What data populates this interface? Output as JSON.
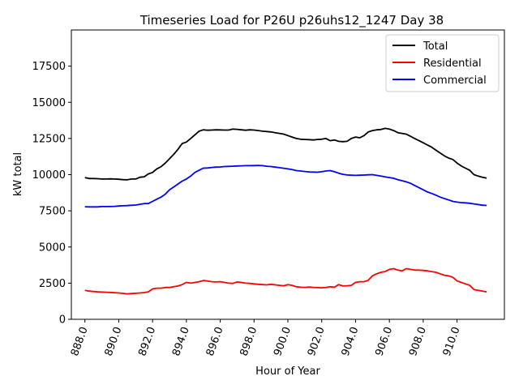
{
  "chart_data": {
    "type": "line",
    "title": "Timeseries Load for P26U p26uhs12_1247  Day 38",
    "xlabel": "Hour of Year",
    "ylabel": "kW total",
    "xlim": [
      887.2,
      912.8
    ],
    "ylim": [
      0,
      20000
    ],
    "xticks": [
      888,
      890,
      892,
      894,
      896,
      898,
      900,
      902,
      904,
      906,
      908,
      910
    ],
    "xtick_labels": [
      "888.0",
      "890.0",
      "892.0",
      "894.0",
      "896.0",
      "898.0",
      "900.0",
      "902.0",
      "904.0",
      "906.0",
      "908.0",
      "910.0"
    ],
    "yticks": [
      0,
      2500,
      5000,
      7500,
      10000,
      12500,
      15000,
      17500
    ],
    "ytick_labels": [
      "0",
      "2500",
      "5000",
      "7500",
      "10000",
      "12500",
      "15000",
      "17500"
    ],
    "legend_position": "top-right",
    "x": [
      888.0,
      888.25,
      888.5,
      888.75,
      889.0,
      889.25,
      889.5,
      889.75,
      890.0,
      890.25,
      890.5,
      890.75,
      891.0,
      891.25,
      891.5,
      891.75,
      892.0,
      892.25,
      892.5,
      892.75,
      893.0,
      893.25,
      893.5,
      893.75,
      894.0,
      894.25,
      894.5,
      894.75,
      895.0,
      895.25,
      895.5,
      895.75,
      896.0,
      896.25,
      896.5,
      896.75,
      897.0,
      897.25,
      897.5,
      897.75,
      898.0,
      898.25,
      898.5,
      898.75,
      899.0,
      899.25,
      899.5,
      899.75,
      900.0,
      900.25,
      900.5,
      900.75,
      901.0,
      901.25,
      901.5,
      901.75,
      902.0,
      902.25,
      902.5,
      902.75,
      903.0,
      903.25,
      903.5,
      903.75,
      904.0,
      904.25,
      904.5,
      904.75,
      905.0,
      905.25,
      905.5,
      905.75,
      906.0,
      906.25,
      906.5,
      906.75,
      907.0,
      907.25,
      907.5,
      907.75,
      908.0,
      908.25,
      908.5,
      908.75,
      909.0,
      909.25,
      909.5,
      909.75,
      910.0,
      910.25,
      910.5,
      910.75,
      911.0,
      911.25,
      911.5,
      911.75
    ],
    "series": [
      {
        "name": "Total",
        "color": "#000000",
        "values": [
          9800,
          9730,
          9730,
          9720,
          9700,
          9700,
          9710,
          9700,
          9680,
          9650,
          9640,
          9700,
          9700,
          9820,
          9850,
          10050,
          10150,
          10400,
          10550,
          10800,
          11100,
          11400,
          11750,
          12150,
          12250,
          12500,
          12750,
          13000,
          13100,
          13070,
          13080,
          13100,
          13090,
          13080,
          13080,
          13150,
          13130,
          13100,
          13070,
          13100,
          13080,
          13050,
          13000,
          12980,
          12950,
          12900,
          12850,
          12800,
          12700,
          12600,
          12500,
          12450,
          12430,
          12420,
          12400,
          12430,
          12450,
          12500,
          12350,
          12400,
          12300,
          12280,
          12300,
          12500,
          12600,
          12550,
          12700,
          12950,
          13050,
          13100,
          13120,
          13200,
          13150,
          13050,
          12900,
          12850,
          12800,
          12650,
          12500,
          12350,
          12200,
          12050,
          11900,
          11700,
          11500,
          11300,
          11150,
          11050,
          10800,
          10600,
          10450,
          10300,
          10000,
          9900,
          9820,
          9760
        ]
      },
      {
        "name": "Residential",
        "color": "#ff0000",
        "values": [
          2000,
          1950,
          1920,
          1900,
          1880,
          1870,
          1860,
          1840,
          1820,
          1790,
          1760,
          1780,
          1800,
          1820,
          1850,
          1900,
          2100,
          2150,
          2150,
          2200,
          2200,
          2250,
          2300,
          2400,
          2550,
          2500,
          2550,
          2600,
          2680,
          2650,
          2600,
          2580,
          2600,
          2550,
          2500,
          2480,
          2580,
          2550,
          2500,
          2480,
          2450,
          2420,
          2400,
          2380,
          2420,
          2380,
          2350,
          2320,
          2400,
          2350,
          2250,
          2220,
          2210,
          2230,
          2200,
          2190,
          2180,
          2200,
          2250,
          2220,
          2400,
          2300,
          2320,
          2350,
          2550,
          2600,
          2600,
          2700,
          3000,
          3150,
          3250,
          3300,
          3450,
          3500,
          3400,
          3350,
          3500,
          3450,
          3400,
          3400,
          3380,
          3350,
          3300,
          3250,
          3150,
          3050,
          3000,
          2900,
          2650,
          2550,
          2450,
          2350,
          2050,
          2000,
          1950,
          1900
        ]
      },
      {
        "name": "Commercial",
        "color": "#0000ff",
        "values": [
          7780,
          7770,
          7770,
          7770,
          7790,
          7790,
          7800,
          7810,
          7830,
          7850,
          7860,
          7880,
          7900,
          7950,
          8000,
          8000,
          8150,
          8300,
          8450,
          8650,
          8950,
          9150,
          9350,
          9550,
          9700,
          9900,
          10150,
          10300,
          10450,
          10460,
          10500,
          10520,
          10530,
          10560,
          10570,
          10580,
          10600,
          10610,
          10620,
          10620,
          10630,
          10640,
          10620,
          10580,
          10560,
          10520,
          10480,
          10440,
          10400,
          10350,
          10280,
          10250,
          10220,
          10190,
          10180,
          10170,
          10200,
          10250,
          10280,
          10200,
          10100,
          10020,
          9980,
          9960,
          9950,
          9960,
          9970,
          9990,
          10000,
          9950,
          9900,
          9850,
          9800,
          9750,
          9650,
          9580,
          9500,
          9400,
          9250,
          9100,
          8950,
          8800,
          8700,
          8580,
          8450,
          8350,
          8250,
          8150,
          8100,
          8070,
          8050,
          8020,
          7980,
          7930,
          7890,
          7870
        ]
      }
    ]
  }
}
